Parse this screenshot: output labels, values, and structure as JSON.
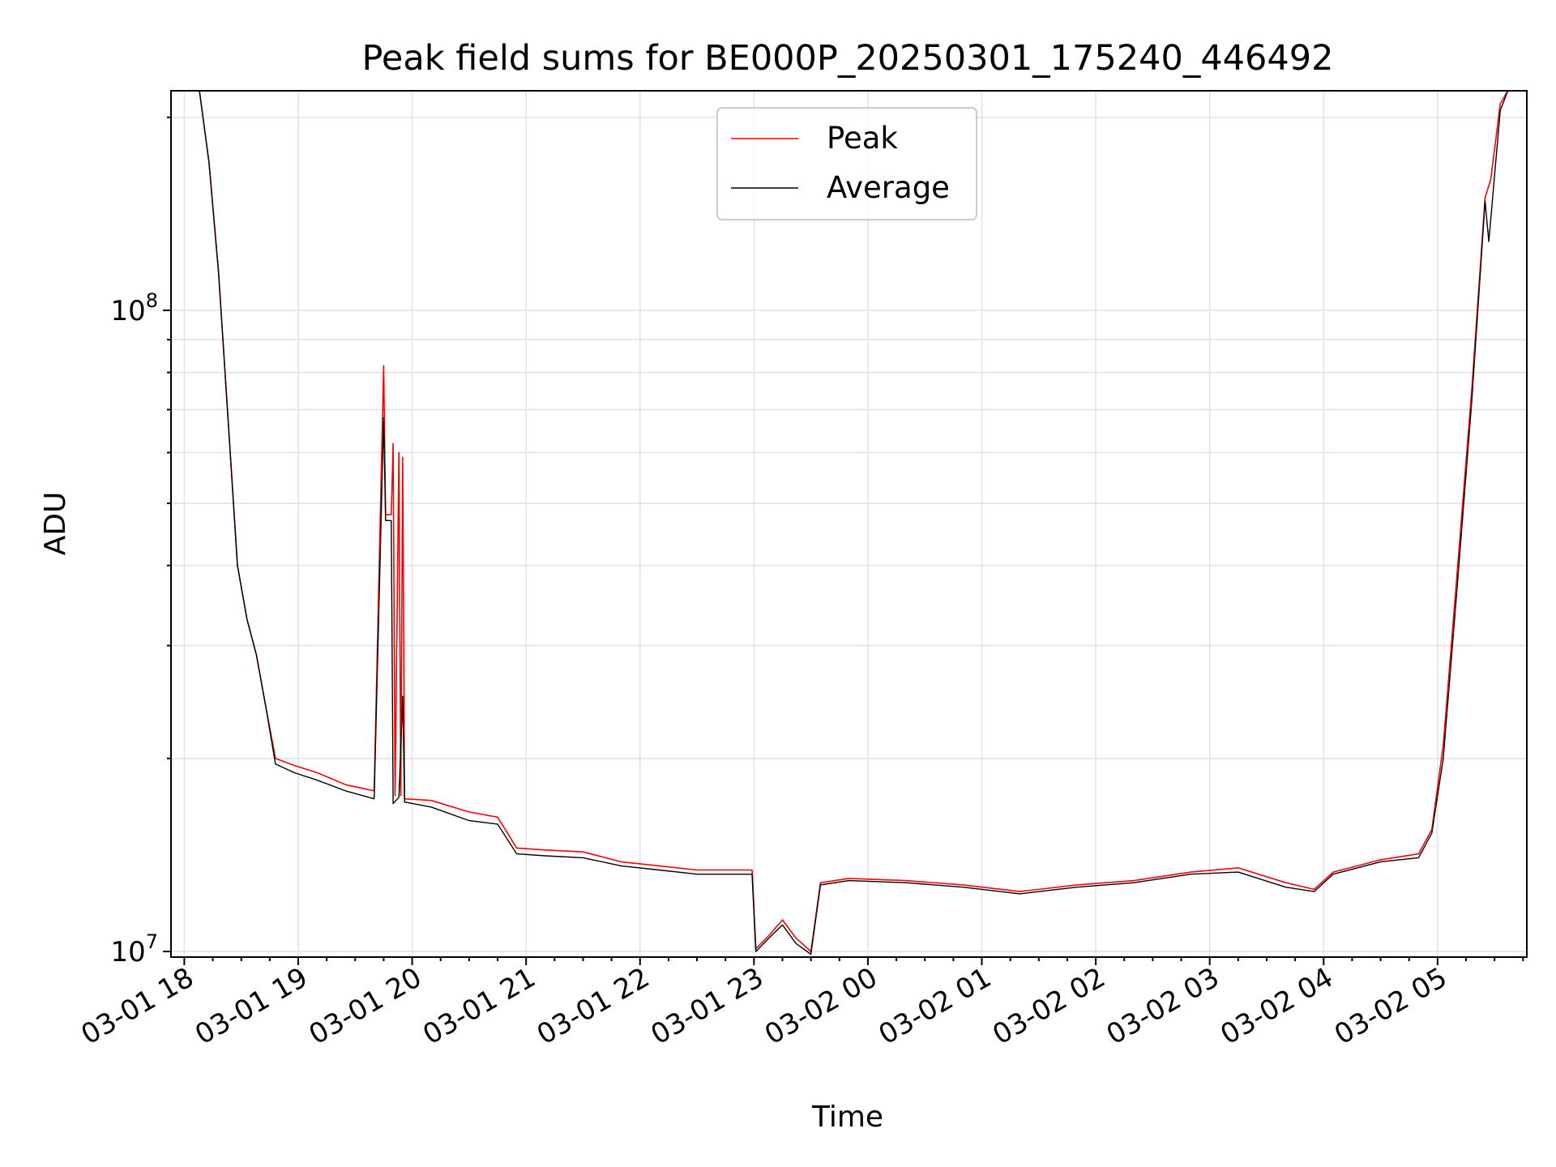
{
  "chart_data": {
    "type": "line",
    "title": "Peak field sums for BE000P_20250301_175240_446492",
    "xlabel": "Time",
    "ylabel": "ADU",
    "yscale": "log",
    "ylim": [
      9800000,
      220000000
    ],
    "xlim": [
      "2025-03-01 17:53",
      "2025-03-02 05:47"
    ],
    "grid": true,
    "legend_position": "upper-center",
    "x_ticks": [
      "2025-03-01 18:00",
      "2025-03-01 19:00",
      "2025-03-01 20:00",
      "2025-03-01 21:00",
      "2025-03-01 22:00",
      "2025-03-01 23:00",
      "2025-03-02 00:00",
      "2025-03-02 01:00",
      "2025-03-02 02:00",
      "2025-03-02 03:00",
      "2025-03-02 04:00",
      "2025-03-02 05:00"
    ],
    "x_tick_labels": [
      "03-01 18",
      "03-01 19",
      "03-01 20",
      "03-01 21",
      "03-01 22",
      "03-01 23",
      "03-02 00",
      "03-02 01",
      "03-02 02",
      "03-02 03",
      "03-02 04",
      "03-02 05"
    ],
    "y_major_ticks": [
      10000000,
      100000000
    ],
    "y_major_labels": [
      {
        "base": "10",
        "exp": "7"
      },
      {
        "base": "10",
        "exp": "8"
      }
    ],
    "series": [
      {
        "name": "Peak",
        "color": "#ff0000",
        "points": [
          [
            "2025-03-01 18:08",
            220000000
          ],
          [
            "2025-03-01 18:13",
            170000000
          ],
          [
            "2025-03-01 18:18",
            115000000
          ],
          [
            "2025-03-01 18:23",
            68000000
          ],
          [
            "2025-03-01 18:28",
            40000000
          ],
          [
            "2025-03-01 18:33",
            33000000
          ],
          [
            "2025-03-01 18:38",
            29000000
          ],
          [
            "2025-03-01 18:43",
            24000000
          ],
          [
            "2025-03-01 18:48",
            20000000
          ],
          [
            "2025-03-01 18:58",
            19500000
          ],
          [
            "2025-03-01 19:10",
            19000000
          ],
          [
            "2025-03-01 19:25",
            18200000
          ],
          [
            "2025-03-01 19:40",
            17800000
          ],
          [
            "2025-03-01 19:45",
            82000000
          ],
          [
            "2025-03-01 19:46",
            48000000
          ],
          [
            "2025-03-01 19:49",
            48000000
          ],
          [
            "2025-03-01 19:50",
            62000000
          ],
          [
            "2025-03-01 19:51",
            17500000
          ],
          [
            "2025-03-01 19:53",
            60000000
          ],
          [
            "2025-03-01 19:54",
            17500000
          ],
          [
            "2025-03-01 19:55",
            59000000
          ],
          [
            "2025-03-01 19:56",
            17300000
          ],
          [
            "2025-03-01 20:10",
            17200000
          ],
          [
            "2025-03-01 20:30",
            16500000
          ],
          [
            "2025-03-01 20:45",
            16200000
          ],
          [
            "2025-03-01 20:55",
            14500000
          ],
          [
            "2025-03-01 21:10",
            14400000
          ],
          [
            "2025-03-01 21:30",
            14300000
          ],
          [
            "2025-03-01 21:50",
            13800000
          ],
          [
            "2025-03-01 22:10",
            13600000
          ],
          [
            "2025-03-01 22:30",
            13400000
          ],
          [
            "2025-03-01 22:59",
            13400000
          ],
          [
            "2025-03-01 23:01",
            10100000
          ],
          [
            "2025-03-01 23:08",
            10600000
          ],
          [
            "2025-03-01 23:15",
            11200000
          ],
          [
            "2025-03-01 23:22",
            10500000
          ],
          [
            "2025-03-01 23:30",
            10000000
          ],
          [
            "2025-03-01 23:35",
            12800000
          ],
          [
            "2025-03-01 23:50",
            13000000
          ],
          [
            "2025-03-02 00:20",
            12900000
          ],
          [
            "2025-03-02 00:50",
            12700000
          ],
          [
            "2025-03-02 01:20",
            12400000
          ],
          [
            "2025-03-02 01:50",
            12700000
          ],
          [
            "2025-03-02 02:20",
            12900000
          ],
          [
            "2025-03-02 02:50",
            13300000
          ],
          [
            "2025-03-02 03:15",
            13500000
          ],
          [
            "2025-03-02 03:40",
            12800000
          ],
          [
            "2025-03-02 03:55",
            12500000
          ],
          [
            "2025-03-02 04:05",
            13300000
          ],
          [
            "2025-03-02 04:30",
            13900000
          ],
          [
            "2025-03-02 04:50",
            14200000
          ],
          [
            "2025-03-02 04:57",
            15500000
          ],
          [
            "2025-03-02 05:03",
            21000000
          ],
          [
            "2025-03-02 05:10",
            38000000
          ],
          [
            "2025-03-02 05:18",
            75000000
          ],
          [
            "2025-03-02 05:25",
            150000000
          ],
          [
            "2025-03-02 05:28",
            160000000
          ],
          [
            "2025-03-02 05:33",
            210000000
          ],
          [
            "2025-03-02 05:37",
            220000000
          ]
        ]
      },
      {
        "name": "Average",
        "color": "#000000",
        "points": [
          [
            "2025-03-01 18:08",
            220000000
          ],
          [
            "2025-03-01 18:13",
            170000000
          ],
          [
            "2025-03-01 18:18",
            115000000
          ],
          [
            "2025-03-01 18:23",
            68000000
          ],
          [
            "2025-03-01 18:28",
            40000000
          ],
          [
            "2025-03-01 18:33",
            33000000
          ],
          [
            "2025-03-01 18:38",
            29000000
          ],
          [
            "2025-03-01 18:43",
            24000000
          ],
          [
            "2025-03-01 18:48",
            19600000
          ],
          [
            "2025-03-01 18:58",
            19000000
          ],
          [
            "2025-03-01 19:10",
            18500000
          ],
          [
            "2025-03-01 19:25",
            17800000
          ],
          [
            "2025-03-01 19:40",
            17300000
          ],
          [
            "2025-03-01 19:45",
            68000000
          ],
          [
            "2025-03-01 19:46",
            47000000
          ],
          [
            "2025-03-01 19:49",
            47000000
          ],
          [
            "2025-03-01 19:50",
            17000000
          ],
          [
            "2025-03-01 19:53",
            17400000
          ],
          [
            "2025-03-01 19:55",
            25000000
          ],
          [
            "2025-03-01 19:56",
            17100000
          ],
          [
            "2025-03-01 20:10",
            16800000
          ],
          [
            "2025-03-01 20:30",
            16000000
          ],
          [
            "2025-03-01 20:45",
            15800000
          ],
          [
            "2025-03-01 20:55",
            14200000
          ],
          [
            "2025-03-01 21:10",
            14100000
          ],
          [
            "2025-03-01 21:30",
            14000000
          ],
          [
            "2025-03-01 21:50",
            13600000
          ],
          [
            "2025-03-01 22:10",
            13400000
          ],
          [
            "2025-03-01 22:30",
            13200000
          ],
          [
            "2025-03-01 22:59",
            13200000
          ],
          [
            "2025-03-01 23:01",
            10000000
          ],
          [
            "2025-03-01 23:08",
            10500000
          ],
          [
            "2025-03-01 23:15",
            11000000
          ],
          [
            "2025-03-01 23:22",
            10300000
          ],
          [
            "2025-03-01 23:30",
            9900000
          ],
          [
            "2025-03-01 23:35",
            12700000
          ],
          [
            "2025-03-01 23:50",
            12900000
          ],
          [
            "2025-03-02 00:20",
            12800000
          ],
          [
            "2025-03-02 00:50",
            12600000
          ],
          [
            "2025-03-02 01:20",
            12300000
          ],
          [
            "2025-03-02 01:50",
            12600000
          ],
          [
            "2025-03-02 02:20",
            12800000
          ],
          [
            "2025-03-02 02:50",
            13200000
          ],
          [
            "2025-03-02 03:15",
            13300000
          ],
          [
            "2025-03-02 03:40",
            12600000
          ],
          [
            "2025-03-02 03:55",
            12400000
          ],
          [
            "2025-03-02 04:05",
            13200000
          ],
          [
            "2025-03-02 04:30",
            13800000
          ],
          [
            "2025-03-02 04:50",
            14000000
          ],
          [
            "2025-03-02 04:57",
            15300000
          ],
          [
            "2025-03-02 05:03",
            20000000
          ],
          [
            "2025-03-02 05:10",
            36000000
          ],
          [
            "2025-03-02 05:18",
            72000000
          ],
          [
            "2025-03-02 05:25",
            148000000
          ],
          [
            "2025-03-02 05:27",
            128000000
          ],
          [
            "2025-03-02 05:33",
            205000000
          ],
          [
            "2025-03-02 05:37",
            220000000
          ]
        ]
      }
    ]
  }
}
